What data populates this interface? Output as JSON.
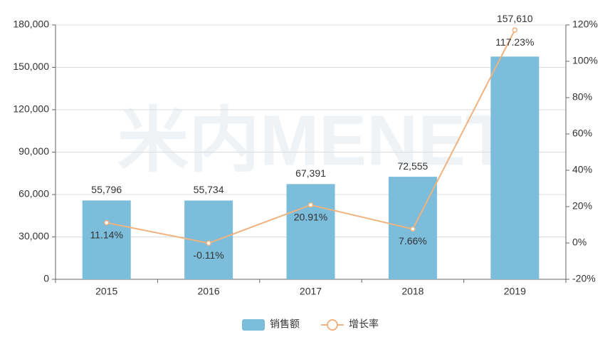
{
  "chart_data": {
    "type": "bar_line",
    "watermark": "米内MENET",
    "categories": [
      "2015",
      "2016",
      "2017",
      "2018",
      "2019"
    ],
    "series": [
      {
        "name": "销售额",
        "type": "bar",
        "color": "#7bbddb",
        "values": [
          55796,
          55734,
          67391,
          72555,
          157610
        ],
        "value_labels": [
          "55,796",
          "55,734",
          "67,391",
          "72,555",
          "157,610"
        ]
      },
      {
        "name": "增长率",
        "type": "line",
        "axis": "y2",
        "color": "#f0b27f",
        "values": [
          11.14,
          -0.11,
          20.91,
          7.66,
          117.23
        ],
        "value_labels": [
          "11.14%",
          "-0.11%",
          "20.91%",
          "7.66%",
          "117.23%"
        ]
      }
    ],
    "ylim": [
      0,
      180000
    ],
    "yticks": [
      0,
      {
        "value": 30000,
        "label": "30,000"
      },
      {
        "value": 60000,
        "label": "60,000"
      },
      {
        "value": 90000,
        "label": "90,000"
      },
      {
        "value": 120000,
        "label": "120,000"
      },
      {
        "value": 150000,
        "label": "150,000"
      },
      {
        "value": 180000,
        "label": "180,000"
      }
    ],
    "y2lim": [
      -20,
      120
    ],
    "y2ticks": [
      {
        "value": -20,
        "label": "-20%"
      },
      {
        "value": 0,
        "label": "0%"
      },
      {
        "value": 20,
        "label": "20%"
      },
      {
        "value": 40,
        "label": "40%"
      },
      {
        "value": 60,
        "label": "60%"
      },
      {
        "value": 80,
        "label": "80%"
      },
      {
        "value": 100,
        "label": "100%"
      },
      {
        "value": 120,
        "label": "120%"
      }
    ],
    "grid": true,
    "legend": "bottom"
  }
}
